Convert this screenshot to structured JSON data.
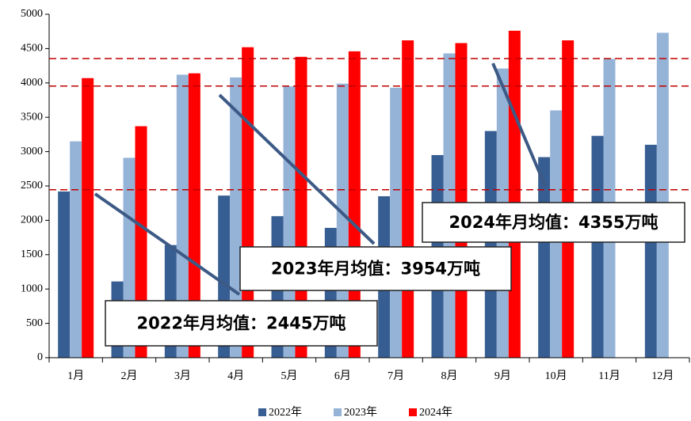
{
  "chart_data": {
    "type": "bar",
    "categories": [
      "1月",
      "2月",
      "3月",
      "4月",
      "5月",
      "6月",
      "7月",
      "8月",
      "9月",
      "10月",
      "11月",
      "12月"
    ],
    "series": [
      {
        "name": "2022年",
        "color": "#375e93",
        "values": [
          2420,
          1110,
          1640,
          2360,
          2060,
          1890,
          2350,
          2950,
          3300,
          2920,
          3230,
          3100
        ]
      },
      {
        "name": "2023年",
        "color": "#95b3d7",
        "values": [
          3150,
          2910,
          4120,
          4080,
          3950,
          3990,
          3930,
          4430,
          4210,
          3600,
          4350,
          4730
        ]
      },
      {
        "name": "2024年",
        "color": "#ff0000",
        "values": [
          4070,
          3370,
          4140,
          4520,
          4380,
          4460,
          4620,
          4580,
          4760,
          4620,
          null,
          null
        ]
      }
    ],
    "ylim": [
      0,
      5000
    ],
    "yticks": [
      0,
      500,
      1000,
      1500,
      2000,
      2500,
      3000,
      3500,
      4000,
      4500,
      5000
    ],
    "reference_lines": [
      {
        "value": 2445,
        "label": "2022年月均值：2445万吨",
        "color": "#c00000"
      },
      {
        "value": 3954,
        "label": "2023年月均值：3954万吨",
        "color": "#c00000"
      },
      {
        "value": 4355,
        "label": "2024年月均值：4355万吨",
        "color": "#c00000"
      }
    ],
    "legend": "bottom"
  }
}
